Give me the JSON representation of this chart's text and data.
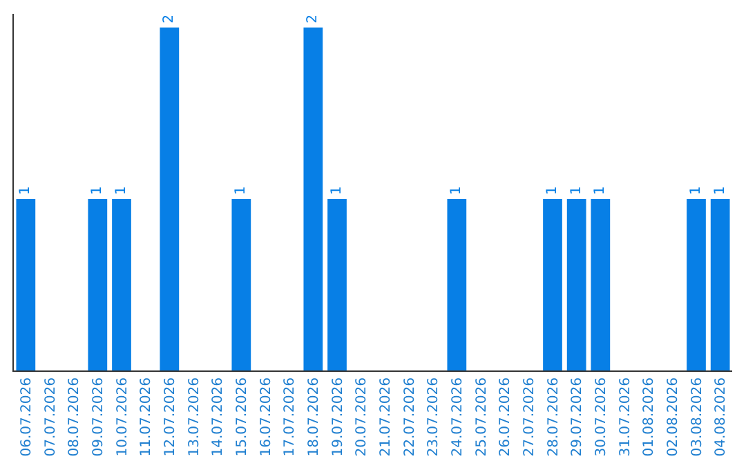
{
  "chart_data": {
    "type": "bar",
    "categories": [
      "06.07.2026",
      "07.07.2026",
      "08.07.2026",
      "09.07.2026",
      "10.07.2026",
      "11.07.2026",
      "12.07.2026",
      "13.07.2026",
      "14.07.2026",
      "15.07.2026",
      "16.07.2026",
      "17.07.2026",
      "18.07.2026",
      "19.07.2026",
      "20.07.2026",
      "21.07.2026",
      "22.07.2026",
      "23.07.2026",
      "24.07.2026",
      "25.07.2026",
      "26.07.2026",
      "27.07.2026",
      "28.07.2026",
      "29.07.2026",
      "30.07.2026",
      "31.07.2026",
      "01.08.2026",
      "02.08.2026",
      "03.08.2026",
      "04.08.2026"
    ],
    "values": [
      1,
      0,
      0,
      1,
      1,
      0,
      2,
      0,
      0,
      1,
      0,
      0,
      2,
      1,
      0,
      0,
      0,
      0,
      1,
      0,
      0,
      0,
      1,
      1,
      1,
      0,
      0,
      0,
      1,
      1
    ],
    "value_labels": [
      "1",
      null,
      null,
      "1",
      "1",
      null,
      "2",
      null,
      null,
      "1",
      null,
      null,
      "2",
      "1",
      null,
      null,
      null,
      null,
      "1",
      null,
      null,
      null,
      "1",
      "1",
      "1",
      null,
      null,
      null,
      "1",
      "1"
    ],
    "color": "#077fe6",
    "ylim": [
      0,
      2.08
    ],
    "tick_labels": "x"
  }
}
